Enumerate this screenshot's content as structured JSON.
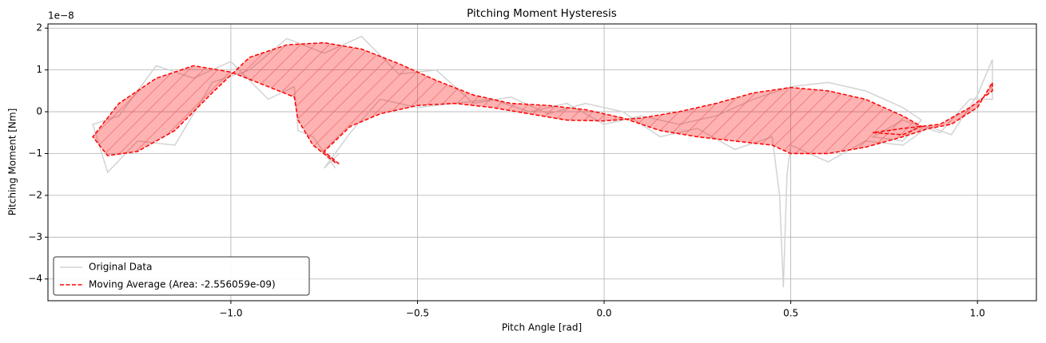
{
  "chart_data": {
    "type": "line",
    "title": "Pitching Moment Hysteresis",
    "x_label": "Pitch Angle [rad]",
    "y_label": "Pitching Moment [Nm]",
    "y_offset_label": "1e−8",
    "xlim": [
      -1.49,
      1.158
    ],
    "ylim": [
      -4.52,
      2.1
    ],
    "xticks": [
      {
        "value": -1.0,
        "label": "−1.0"
      },
      {
        "value": -0.5,
        "label": "−0.5"
      },
      {
        "value": 0.0,
        "label": "0.0"
      },
      {
        "value": 0.5,
        "label": "0.5"
      },
      {
        "value": 1.0,
        "label": "1.0"
      }
    ],
    "yticks": [
      {
        "value": -4,
        "label": "−4"
      },
      {
        "value": -3,
        "label": "−3"
      },
      {
        "value": -2,
        "label": "−2"
      },
      {
        "value": -1,
        "label": "−1"
      },
      0,
      1,
      2
    ],
    "grid": true,
    "legend": "lower left",
    "series": [
      {
        "name": "Original Data",
        "color": "#d3d3d3",
        "x": [
          -0.72,
          -0.78,
          -0.82,
          -0.83,
          -0.9,
          -1.0,
          -1.1,
          -1.2,
          -1.3,
          -1.37,
          -1.33,
          -1.25,
          -1.15,
          -1.05,
          -0.95,
          -0.85,
          -0.75,
          -0.65,
          -0.55,
          -0.45,
          -0.35,
          -0.25,
          -0.15,
          -0.05,
          0.05,
          0.15,
          0.25,
          0.35,
          0.45,
          0.47,
          0.48,
          0.49,
          0.5,
          0.6,
          0.7,
          0.8,
          0.87,
          0.93,
          1.0,
          1.04,
          1.04,
          0.98,
          0.9,
          0.8,
          0.72,
          0.8,
          0.85,
          0.8,
          0.7,
          0.6,
          0.5,
          0.4,
          0.3,
          0.2,
          0.1,
          0.0,
          -0.1,
          -0.2,
          -0.3,
          -0.4,
          -0.5,
          -0.6,
          -0.68,
          -0.75,
          -0.71
        ],
        "values": [
          -1.35,
          -0.6,
          -0.45,
          0.6,
          0.3,
          1.2,
          0.8,
          1.1,
          -0.1,
          -0.3,
          -1.45,
          -0.7,
          -0.8,
          0.7,
          1.0,
          1.75,
          1.4,
          1.8,
          0.9,
          1.0,
          0.2,
          0.35,
          -0.05,
          0.2,
          0.0,
          -0.6,
          -0.4,
          -0.9,
          -0.6,
          -2.0,
          -4.2,
          -1.5,
          -0.8,
          -1.2,
          -0.7,
          -0.8,
          -0.35,
          -0.55,
          0.4,
          1.25,
          0.3,
          0.3,
          -0.5,
          -0.2,
          -0.6,
          -0.7,
          -0.2,
          0.1,
          0.5,
          0.7,
          0.6,
          0.3,
          -0.1,
          -0.3,
          -0.1,
          -0.3,
          0.2,
          0.0,
          0.3,
          0.2,
          0.1,
          0.3,
          -0.5,
          -1.35,
          -1.0
        ]
      },
      {
        "name": "Moving Average (Area: -2.556059e-09)",
        "color": "#ff0000",
        "dashed": true,
        "fill_color": "#ff0000",
        "hatch": "/",
        "x": [
          -0.72,
          -0.78,
          -0.82,
          -0.83,
          -0.9,
          -1.0,
          -1.1,
          -1.2,
          -1.3,
          -1.37,
          -1.33,
          -1.25,
          -1.15,
          -1.05,
          -0.95,
          -0.85,
          -0.75,
          -0.65,
          -0.55,
          -0.45,
          -0.35,
          -0.25,
          -0.15,
          -0.05,
          0.05,
          0.15,
          0.25,
          0.35,
          0.45,
          0.5,
          0.6,
          0.7,
          0.8,
          0.87,
          0.93,
          1.0,
          1.04,
          1.04,
          0.98,
          0.9,
          0.8,
          0.72,
          0.8,
          0.85,
          0.8,
          0.7,
          0.6,
          0.5,
          0.4,
          0.3,
          0.2,
          0.1,
          0.0,
          -0.1,
          -0.2,
          -0.3,
          -0.4,
          -0.5,
          -0.6,
          -0.68,
          -0.75,
          -0.71
        ],
        "values": [
          -1.22,
          -0.8,
          -0.2,
          0.35,
          0.6,
          0.95,
          1.1,
          0.8,
          0.2,
          -0.6,
          -1.05,
          -0.95,
          -0.45,
          0.45,
          1.3,
          1.6,
          1.65,
          1.5,
          1.15,
          0.75,
          0.4,
          0.2,
          0.15,
          0.05,
          -0.15,
          -0.45,
          -0.6,
          -0.7,
          -0.8,
          -1.0,
          -1.0,
          -0.85,
          -0.6,
          -0.4,
          -0.3,
          0.1,
          0.7,
          0.5,
          0.1,
          -0.3,
          -0.4,
          -0.5,
          -0.55,
          -0.35,
          -0.1,
          0.3,
          0.5,
          0.58,
          0.45,
          0.2,
          0.0,
          -0.15,
          -0.22,
          -0.2,
          -0.05,
          0.1,
          0.2,
          0.15,
          -0.05,
          -0.35,
          -0.95,
          -1.25
        ]
      }
    ]
  }
}
